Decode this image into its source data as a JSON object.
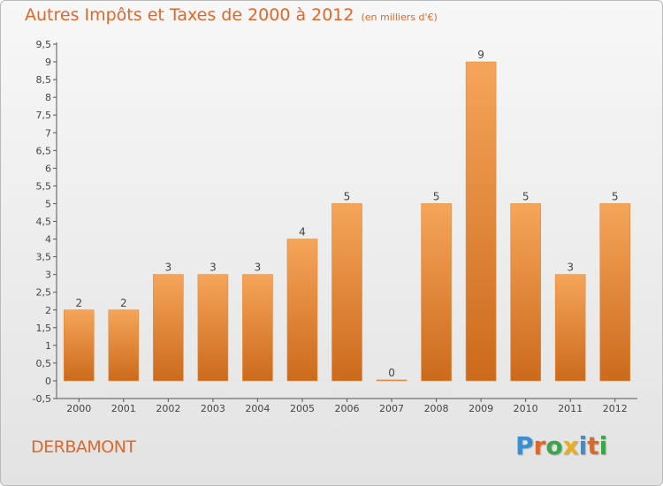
{
  "header": {
    "title": "Autres Impôts et Taxes de 2000 à 2012",
    "subtitle": "(en milliers d'€)"
  },
  "footer": {
    "commune": "DERBAMONT",
    "logo_text": "Proxiti"
  },
  "colors": {
    "accent": "#e0672a",
    "bar_light": "#f5a55a",
    "bar_dark": "#cc6a1c",
    "logo_letters": [
      "#3a8fd0",
      "#e0672a",
      "#3aa54a",
      "#e8b020",
      "#3a8fd0",
      "#e0672a",
      "#3aa54a"
    ]
  },
  "chart_data": {
    "type": "bar",
    "title": "Autres Impôts et Taxes de 2000 à 2012",
    "subtitle": "(en milliers d'€)",
    "categories": [
      "2000",
      "2001",
      "2002",
      "2003",
      "2004",
      "2005",
      "2006",
      "2007",
      "2008",
      "2009",
      "2010",
      "2011",
      "2012"
    ],
    "values": [
      2,
      2,
      3,
      3,
      3,
      4,
      5,
      0,
      5,
      9,
      5,
      3,
      5
    ],
    "data_labels": [
      "2",
      "2",
      "3",
      "3",
      "3",
      "4",
      "5",
      "0",
      "5",
      "9",
      "5",
      "3",
      "5"
    ],
    "ylim": [
      -0.5,
      9.5
    ],
    "yticks": [
      "-0,5",
      "0",
      "0,5",
      "1",
      "1,5",
      "2",
      "2,5",
      "3",
      "3,5",
      "4",
      "4,5",
      "5",
      "5,5",
      "6",
      "6,5",
      "7",
      "7,5",
      "8",
      "8,5",
      "9",
      "9,5"
    ],
    "ytick_values": [
      -0.5,
      0,
      0.5,
      1,
      1.5,
      2,
      2.5,
      3,
      3.5,
      4,
      4.5,
      5,
      5.5,
      6,
      6.5,
      7,
      7.5,
      8,
      8.5,
      9,
      9.5
    ],
    "xlabel": "",
    "ylabel": "",
    "grid": false,
    "legend": "none"
  }
}
